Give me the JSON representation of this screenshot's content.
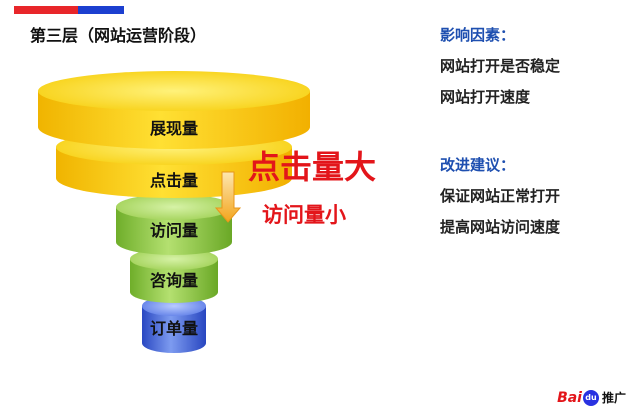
{
  "title": "第三层（网站运营阶段）",
  "funnel": {
    "stages": [
      {
        "label": "展现量"
      },
      {
        "label": "点击量"
      },
      {
        "label": "访问量"
      },
      {
        "label": "咨询量"
      },
      {
        "label": "订单量"
      }
    ],
    "callout_big": "点击量大",
    "callout_small": "访问量小",
    "arrow_icon": "down-arrow-icon"
  },
  "factors": {
    "heading": "影响因素：",
    "items": [
      "网站打开是否稳定",
      "网站打开速度"
    ]
  },
  "suggestions": {
    "heading": "改进建议：",
    "items": [
      "保证网站正常打开",
      "提高网站访问速度"
    ]
  },
  "brand": {
    "bai": "Bai",
    "du": "du",
    "suffix": "推广"
  },
  "colors": {
    "yellow": "#f5c400",
    "green": "#8cc63f",
    "blue": "#3a5fd9",
    "red": "#e3151a",
    "heading_blue": "#1e4fb0"
  }
}
